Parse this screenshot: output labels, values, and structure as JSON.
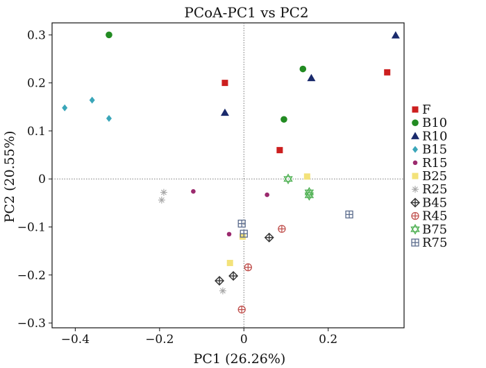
{
  "chart_data": {
    "type": "scatter",
    "title": "PCoA-PC1 vs PC2",
    "xlabel": "PC1 (26.26%)",
    "ylabel": "PC2 (20.55%)",
    "xlim": [
      -0.455,
      0.38
    ],
    "ylim": [
      -0.31,
      0.325
    ],
    "x_ticks": [
      -0.4,
      -0.2,
      0,
      0.2
    ],
    "x_tick_labels": [
      "−0.4",
      "−0.2",
      "0",
      "0.2"
    ],
    "y_ticks": [
      -0.3,
      -0.2,
      -0.1,
      0,
      0.1,
      0.2,
      0.3
    ],
    "y_tick_labels": [
      "−0.3",
      "−0.2",
      "−0.1",
      "0",
      "0.1",
      "0.2",
      "0.3"
    ],
    "reference_lines": {
      "x": 0,
      "y": 0,
      "style": "dotted"
    },
    "grid": false,
    "legend_position": "right",
    "series": [
      {
        "name": "F",
        "marker": "square",
        "color": "#cc1f1f",
        "points": [
          [
            -0.045,
            0.2
          ],
          [
            0.085,
            0.06
          ],
          [
            0.34,
            0.222
          ]
        ]
      },
      {
        "name": "B10",
        "marker": "circle",
        "color": "#228b22",
        "points": [
          [
            -0.32,
            0.3
          ],
          [
            0.14,
            0.229
          ],
          [
            0.095,
            0.124
          ]
        ]
      },
      {
        "name": "R10",
        "marker": "triangle",
        "color": "#1a2a6c",
        "points": [
          [
            -0.045,
            0.138
          ],
          [
            0.16,
            0.21
          ],
          [
            0.36,
            0.299
          ]
        ]
      },
      {
        "name": "B15",
        "marker": "diamond",
        "color": "#3aa6b9",
        "points": [
          [
            -0.425,
            0.148
          ],
          [
            -0.36,
            0.164
          ],
          [
            -0.32,
            0.126
          ]
        ]
      },
      {
        "name": "R15",
        "marker": "small-circle",
        "color": "#9b2a6e",
        "points": [
          [
            -0.12,
            -0.026
          ],
          [
            0.055,
            -0.033
          ],
          [
            -0.035,
            -0.115
          ]
        ]
      },
      {
        "name": "B25",
        "marker": "square",
        "color": "#f3e27a",
        "points": [
          [
            0.15,
            0.005
          ],
          [
            -0.003,
            -0.12
          ],
          [
            -0.033,
            -0.175
          ]
        ]
      },
      {
        "name": "R25",
        "marker": "star",
        "color": "#a6a6a6",
        "points": [
          [
            -0.19,
            -0.028
          ],
          [
            -0.195,
            -0.044
          ],
          [
            -0.05,
            -0.233
          ]
        ]
      },
      {
        "name": "B45",
        "marker": "diamond-cross",
        "color": "#333333",
        "points": [
          [
            0.06,
            -0.122
          ],
          [
            -0.058,
            -0.212
          ],
          [
            -0.025,
            -0.202
          ]
        ]
      },
      {
        "name": "R45",
        "marker": "circle-cross",
        "color": "#c0504d",
        "points": [
          [
            0.09,
            -0.104
          ],
          [
            0.01,
            -0.184
          ],
          [
            -0.005,
            -0.272
          ]
        ]
      },
      {
        "name": "B75",
        "marker": "hexagram",
        "color": "#4caf50",
        "points": [
          [
            0.105,
            0.0
          ],
          [
            0.155,
            -0.028
          ],
          [
            0.155,
            -0.034
          ]
        ]
      },
      {
        "name": "R75",
        "marker": "square-cross",
        "color": "#5a6b8c",
        "points": [
          [
            -0.005,
            -0.093
          ],
          [
            0.0,
            -0.114
          ],
          [
            0.25,
            -0.074
          ]
        ]
      }
    ]
  }
}
